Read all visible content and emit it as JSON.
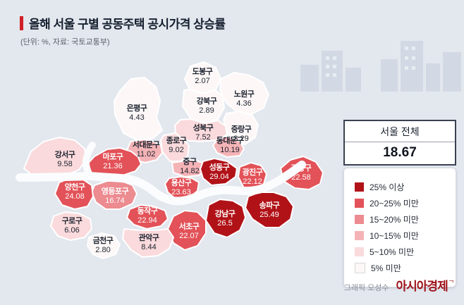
{
  "header": {
    "title": "올해 서울 구별 공동주택 공시가격 상승률",
    "subtitle": "(단위: %, 자료: 국토교통부)",
    "accent_color": "#d21f26"
  },
  "total": {
    "label": "서울 전체",
    "value": "18.67"
  },
  "legend": {
    "items": [
      {
        "label": "25% 이상",
        "color": "#b11218",
        "border": false
      },
      {
        "label": "20~25% 미만",
        "color": "#e25258",
        "border": false
      },
      {
        "label": "15~20% 미만",
        "color": "#ec8b90",
        "border": false
      },
      {
        "label": "10~15% 미만",
        "color": "#f4b3b6",
        "border": false
      },
      {
        "label": "5~10% 미만",
        "color": "#fadadc",
        "border": false
      },
      {
        "label": "5% 미만",
        "color": "#fdf7f7",
        "border": true
      }
    ]
  },
  "map": {
    "districts": [
      {
        "id": "dobong",
        "name": "도봉구",
        "value": "2.07",
        "bucket": 5
      },
      {
        "id": "nowon",
        "name": "노원구",
        "value": "4.36",
        "bucket": 5
      },
      {
        "id": "gangbuk",
        "name": "강북구",
        "value": "2.89",
        "bucket": 5
      },
      {
        "id": "eunpyeong",
        "name": "은평구",
        "value": "4.43",
        "bucket": 5
      },
      {
        "id": "jungnang",
        "name": "중랑구",
        "value": "3.29",
        "bucket": 5
      },
      {
        "id": "seongbuk",
        "name": "성북구",
        "value": "7.52",
        "bucket": 4
      },
      {
        "id": "jongno",
        "name": "종로구",
        "value": "9.02",
        "bucket": 4
      },
      {
        "id": "seodaemun",
        "name": "서대문구",
        "value": "11.02",
        "bucket": 3
      },
      {
        "id": "dongdaemun",
        "name": "동대문구",
        "value": "10.19",
        "bucket": 3
      },
      {
        "id": "junggu",
        "name": "중구",
        "value": "14.82",
        "bucket": 3
      },
      {
        "id": "mapo",
        "name": "마포구",
        "value": "21.36",
        "bucket": 1
      },
      {
        "id": "seongdong",
        "name": "성동구",
        "value": "29.04",
        "bucket": 0
      },
      {
        "id": "gwangjin",
        "name": "광진구",
        "value": "22.12",
        "bucket": 1
      },
      {
        "id": "gangdong",
        "name": "강동구",
        "value": "22.58",
        "bucket": 1
      },
      {
        "id": "gangseo",
        "name": "강서구",
        "value": "9.58",
        "bucket": 4
      },
      {
        "id": "yangcheon",
        "name": "양천구",
        "value": "24.08",
        "bucket": 1
      },
      {
        "id": "yeongdeungpo",
        "name": "영등포구",
        "value": "16.74",
        "bucket": 2
      },
      {
        "id": "yongsan",
        "name": "용산구",
        "value": "23.63",
        "bucket": 1
      },
      {
        "id": "dongjak",
        "name": "동작구",
        "value": "22.94",
        "bucket": 1
      },
      {
        "id": "seocho",
        "name": "서초구",
        "value": "22.07",
        "bucket": 1
      },
      {
        "id": "gangnam",
        "name": "강남구",
        "value": "26.5",
        "bucket": 0
      },
      {
        "id": "songpa",
        "name": "송파구",
        "value": "25.49",
        "bucket": 0
      },
      {
        "id": "guro",
        "name": "구로구",
        "value": "6.06",
        "bucket": 4
      },
      {
        "id": "geumcheon",
        "name": "금천구",
        "value": "2.80",
        "bucket": 5
      },
      {
        "id": "gwanak",
        "name": "관악구",
        "value": "8.44",
        "bucket": 4
      }
    ]
  },
  "credit": {
    "text": "그래픽 오성수",
    "logo": "아시아경제",
    "logo_mark": "ᄀ"
  },
  "chart_data": {
    "type": "heatmap",
    "subtype": "choropleth-map",
    "title": "올해 서울 구별 공동주택 공시가격 상승률",
    "unit": "%",
    "source": "국토교통부",
    "seoul_total": 18.67,
    "categories": [
      "도봉구",
      "노원구",
      "강북구",
      "은평구",
      "중랑구",
      "성북구",
      "종로구",
      "서대문구",
      "동대문구",
      "중구",
      "마포구",
      "성동구",
      "광진구",
      "강동구",
      "강서구",
      "양천구",
      "영등포구",
      "용산구",
      "동작구",
      "서초구",
      "강남구",
      "송파구",
      "구로구",
      "금천구",
      "관악구"
    ],
    "values": [
      2.07,
      4.36,
      2.89,
      4.43,
      3.29,
      7.52,
      9.02,
      11.02,
      10.19,
      14.82,
      21.36,
      29.04,
      22.12,
      22.58,
      9.58,
      24.08,
      16.74,
      23.63,
      22.94,
      22.07,
      26.5,
      25.49,
      6.06,
      2.8,
      8.44
    ],
    "legend_bins": [
      "25% 이상",
      "20~25% 미만",
      "15~20% 미만",
      "10~15% 미만",
      "5~10% 미만",
      "5% 미만"
    ],
    "legend_position": "right",
    "colors": [
      "#b11218",
      "#e25258",
      "#ec8b90",
      "#f4b3b6",
      "#fadadc",
      "#fdf7f7"
    ]
  }
}
